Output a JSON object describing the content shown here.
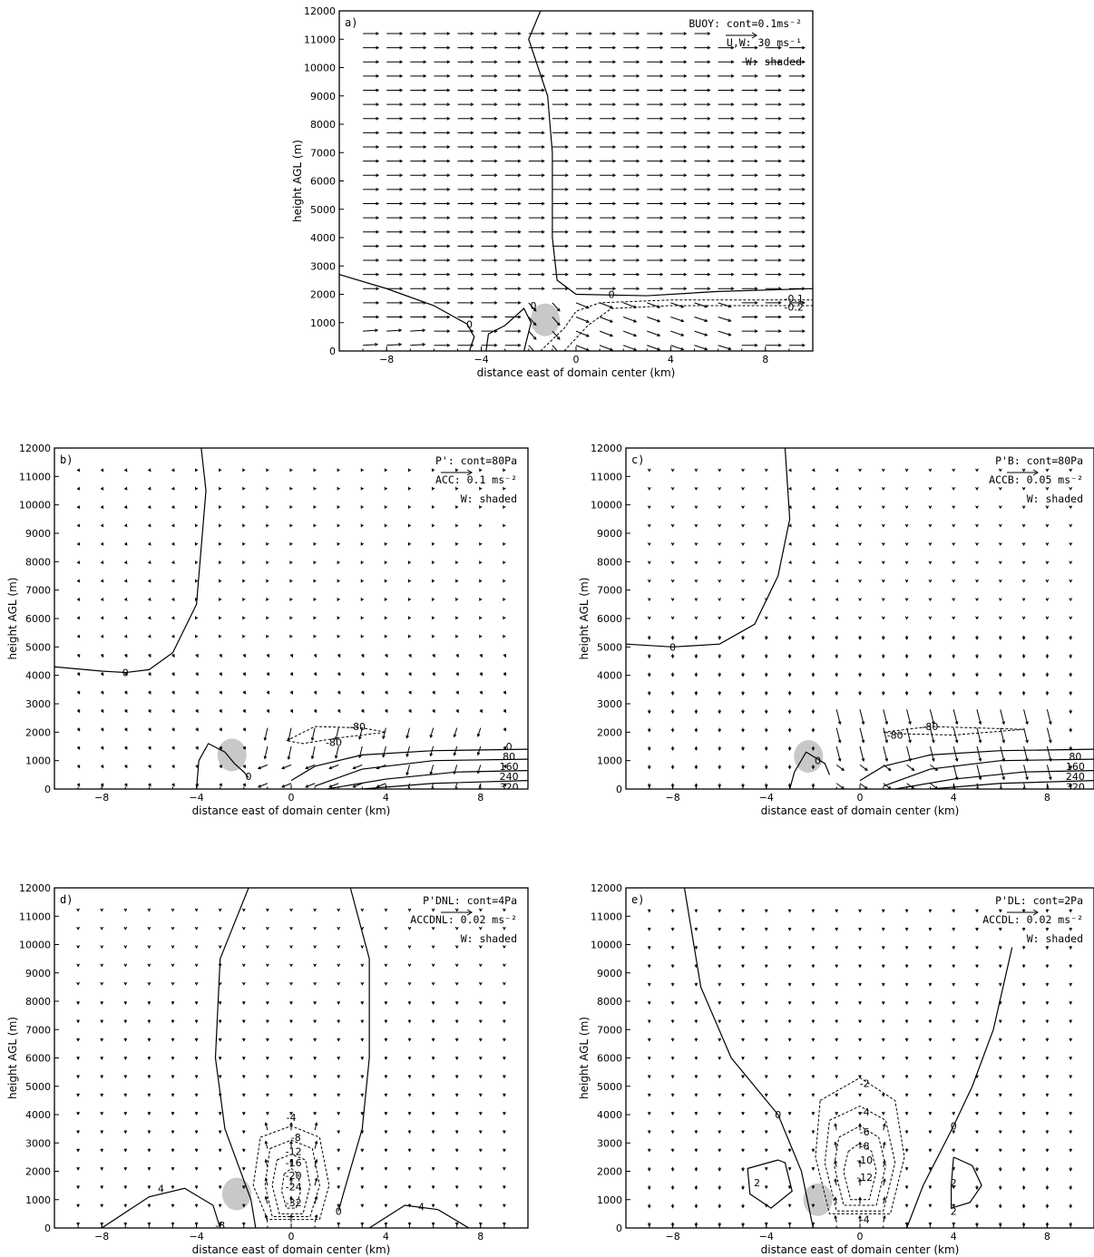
{
  "chart_data": [
    {
      "panel": "a)",
      "type": "line",
      "legend_lines": [
        "BUOY: cont=0.1ms⁻²",
        "U,W:  30  ms⁻¹",
        "W: shaded"
      ],
      "xlabel": "distance east of domain center (km)",
      "ylabel": "height AGL (m)",
      "xlim": [
        -10,
        10
      ],
      "ylim": [
        0,
        12000
      ],
      "xticks": [
        "-8",
        "-4",
        "0",
        "4",
        "8"
      ],
      "yticks": [
        "0",
        "1000",
        "2000",
        "3000",
        "4000",
        "5000",
        "6000",
        "7000",
        "8000",
        "9000",
        "10000",
        "11000",
        "12000"
      ],
      "contour_labels": [
        "0",
        "0",
        "0",
        "-0.1",
        "-0.2"
      ],
      "vector_scale": "30 ms⁻¹"
    },
    {
      "panel": "b)",
      "type": "line",
      "legend_lines": [
        "P': cont=80Pa",
        "ACC:  0.1  ms⁻²",
        "W: shaded"
      ],
      "xlabel": "distance east of domain center (km)",
      "ylabel": "height AGL (m)",
      "xlim": [
        -10,
        10
      ],
      "ylim": [
        0,
        12000
      ],
      "xticks": [
        "-8",
        "-4",
        "0",
        "4",
        "8"
      ],
      "yticks": [
        "0",
        "1000",
        "2000",
        "3000",
        "4000",
        "5000",
        "6000",
        "7000",
        "8000",
        "9000",
        "10000",
        "11000",
        "12000"
      ],
      "contour_labels": [
        "0",
        "0",
        "-80",
        "-80",
        "0",
        "80",
        "160",
        "240",
        "320"
      ]
    },
    {
      "panel": "c)",
      "type": "line",
      "legend_lines": [
        "P'B: cont=80Pa",
        "ACCB:  0.05  ms⁻²",
        "W: shaded"
      ],
      "xlabel": "distance east of domain center (km)",
      "ylabel": "height AGL (m)",
      "xlim": [
        -10,
        10
      ],
      "ylim": [
        0,
        12000
      ],
      "xticks": [
        "-8",
        "-4",
        "0",
        "4",
        "8"
      ],
      "yticks": [
        "0",
        "1000",
        "2000",
        "3000",
        "4000",
        "5000",
        "6000",
        "7000",
        "8000",
        "9000",
        "10000",
        "11000",
        "12000"
      ],
      "contour_labels": [
        "0",
        "0",
        "-80",
        "-80",
        "80",
        "160",
        "240",
        "320"
      ]
    },
    {
      "panel": "d)",
      "type": "line",
      "legend_lines": [
        "P'DNL: cont=4Pa",
        "ACCDNL:  0.02  ms⁻²",
        "W: shaded"
      ],
      "xlabel": "distance east of domain center (km)",
      "ylabel": "height AGL (m)",
      "xlim": [
        -10,
        10
      ],
      "ylim": [
        0,
        12000
      ],
      "xticks": [
        "-8",
        "-4",
        "0",
        "4",
        "8"
      ],
      "yticks": [
        "0",
        "1000",
        "2000",
        "3000",
        "4000",
        "5000",
        "6000",
        "7000",
        "8000",
        "9000",
        "10000",
        "11000",
        "12000"
      ],
      "contour_labels": [
        "4",
        "4",
        "-4",
        "-8",
        "-12",
        "-16",
        "-20",
        "-24",
        "-32",
        "0",
        "-8"
      ]
    },
    {
      "panel": "e)",
      "type": "line",
      "legend_lines": [
        "P'DL: cont=2Pa",
        "ACCDL:  0.02  ms⁻²",
        "W: shaded"
      ],
      "xlabel": "distance east of domain center (km)",
      "ylabel": "height AGL (m)",
      "xlim": [
        -10,
        10
      ],
      "ylim": [
        0,
        12000
      ],
      "xticks": [
        "-8",
        "-4",
        "0",
        "4",
        "8"
      ],
      "yticks": [
        "0",
        "1000",
        "2000",
        "3000",
        "4000",
        "5000",
        "6000",
        "7000",
        "8000",
        "9000",
        "10000",
        "11000",
        "12000"
      ],
      "contour_labels": [
        "0",
        "0",
        "2",
        "2",
        "2",
        "-2",
        "-4",
        "-6",
        "-8",
        "-10",
        "-12",
        "-4"
      ]
    }
  ]
}
